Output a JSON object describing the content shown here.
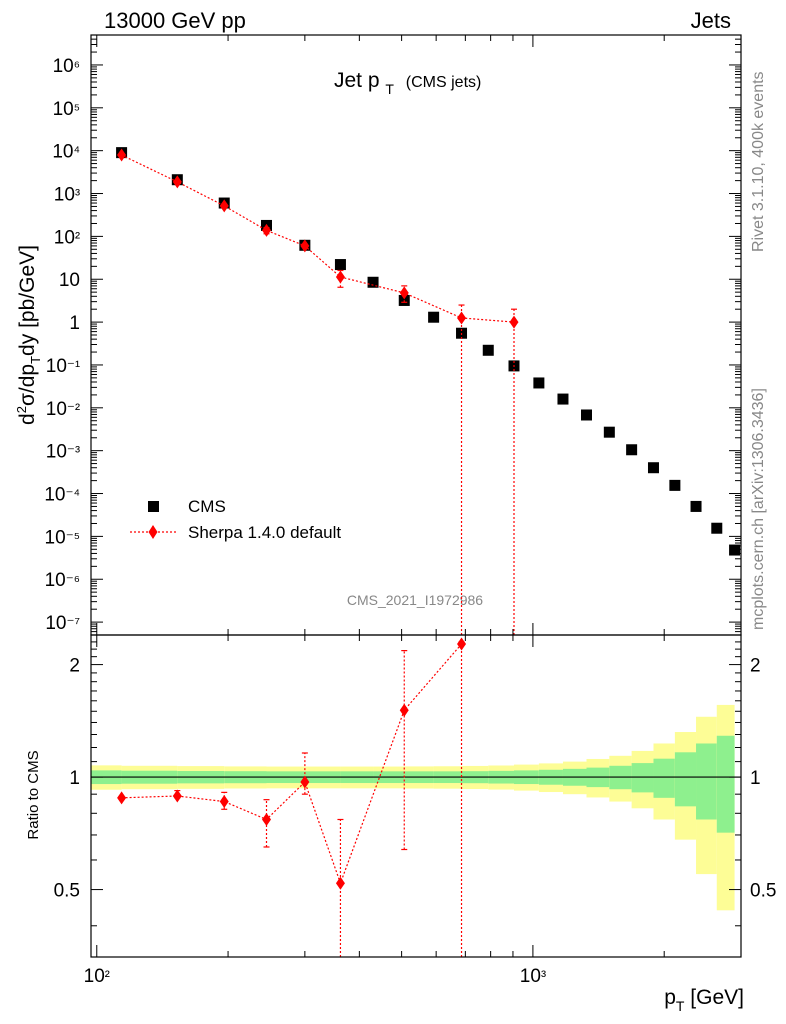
{
  "header": {
    "left": "13000 GeV pp",
    "right": "Jets"
  },
  "side_labels": {
    "rivet": "Rivet 3.1.10,  400k events",
    "mcplots": "mcplots.cern.ch [arXiv:1306.3436]"
  },
  "colors": {
    "data": "#000000",
    "mc": "#ff0000",
    "band_inner": "#8ef08e",
    "band_outer": "#fdfd96",
    "watermark": "#888888",
    "side_text": "#888888"
  },
  "chart_data": [
    {
      "type": "scatter",
      "title": "Jet p",
      "title_sub": "T",
      "title_extra": "(CMS jets)",
      "analysis_tag": "CMS_2021_I1972986",
      "ylabel": "d²σ/dp_Tdy [pb/GeV]",
      "yscale": "log",
      "ylim": [
        5e-08,
        5000000.0
      ],
      "xscale": "log",
      "xlim": [
        97,
        3000
      ],
      "ytick_labels": [
        "10⁻⁷",
        "10⁻⁶",
        "10⁻⁵",
        "10⁻⁴",
        "10⁻³",
        "10⁻²",
        "10⁻¹",
        "1",
        "10",
        "10²",
        "10³",
        "10⁴",
        "10⁵",
        "10⁶"
      ],
      "legend": {
        "placement": "lower-left",
        "entries": [
          "CMS",
          "Sherpa 1.4.0 default"
        ]
      },
      "series": [
        {
          "name": "CMS",
          "marker": "square",
          "x": [
            114,
            153,
            196,
            245,
            300,
            362,
            430,
            507,
            592,
            686,
            790,
            905,
            1032,
            1172,
            1327,
            1497,
            1684,
            1890,
            2116,
            2366,
            2640,
            2900
          ],
          "y": [
            9000,
            2100,
            600,
            180,
            62,
            22,
            8.5,
            3.2,
            1.3,
            0.55,
            0.22,
            0.095,
            0.038,
            0.016,
            0.0068,
            0.0027,
            0.00105,
            0.0004,
            0.000155,
            5e-05,
            1.55e-05,
            4.8e-06
          ]
        },
        {
          "name": "Sherpa 1.4.0 default",
          "marker": "diamond",
          "x": [
            114,
            153,
            196,
            245,
            300,
            362,
            507,
            686,
            905
          ],
          "y": [
            7900,
            1870,
            515,
            138,
            60,
            11.3,
            4.8,
            1.25,
            1.0
          ],
          "yerr_low": [
            7400,
            1740,
            470,
            115,
            56,
            6.5,
            2.9,
            1.25,
            1.0
          ],
          "yerr_high": [
            8400,
            2000,
            560,
            160,
            64,
            16,
            7.0,
            2.5,
            2.0
          ]
        }
      ]
    },
    {
      "type": "line",
      "ylabel": "Ratio to CMS",
      "xlabel": "p_T [GeV]",
      "xscale": "log",
      "xlim": [
        97,
        3000
      ],
      "ylim": [
        0.33,
        2.4
      ],
      "ytick_labels": [
        "0.5",
        "1",
        "2"
      ],
      "xtick_labels": [
        "10²",
        "10³"
      ],
      "reference_line": 1,
      "band_edges": [
        97,
        114,
        153,
        196,
        245,
        300,
        362,
        430,
        507,
        592,
        686,
        790,
        905,
        1032,
        1172,
        1327,
        1497,
        1684,
        1890,
        2116,
        2366,
        2640,
        2900
      ],
      "band_inner_half_width": [
        0.042,
        0.04,
        0.038,
        0.037,
        0.036,
        0.036,
        0.036,
        0.036,
        0.036,
        0.036,
        0.037,
        0.039,
        0.042,
        0.046,
        0.052,
        0.06,
        0.072,
        0.09,
        0.12,
        0.165,
        0.23,
        0.29
      ],
      "band_outer_half_width": [
        0.075,
        0.072,
        0.07,
        0.068,
        0.067,
        0.067,
        0.067,
        0.067,
        0.068,
        0.069,
        0.071,
        0.074,
        0.08,
        0.088,
        0.1,
        0.118,
        0.14,
        0.175,
        0.23,
        0.32,
        0.45,
        0.56
      ],
      "series": [
        {
          "name": "Sherpa 1.4.0 default",
          "x": [
            114,
            153,
            196,
            245,
            300,
            362,
            507,
            686
          ],
          "y": [
            0.88,
            0.89,
            0.86,
            0.77,
            0.97,
            0.52,
            1.51,
            2.27
          ],
          "yerr_low": [
            0.88,
            0.88,
            0.82,
            0.65,
            0.9,
            0.0,
            0.64,
            0.0
          ],
          "yerr_high": [
            0.88,
            0.92,
            0.91,
            0.87,
            1.16,
            0.77,
            2.18,
            2.3
          ]
        }
      ]
    }
  ]
}
